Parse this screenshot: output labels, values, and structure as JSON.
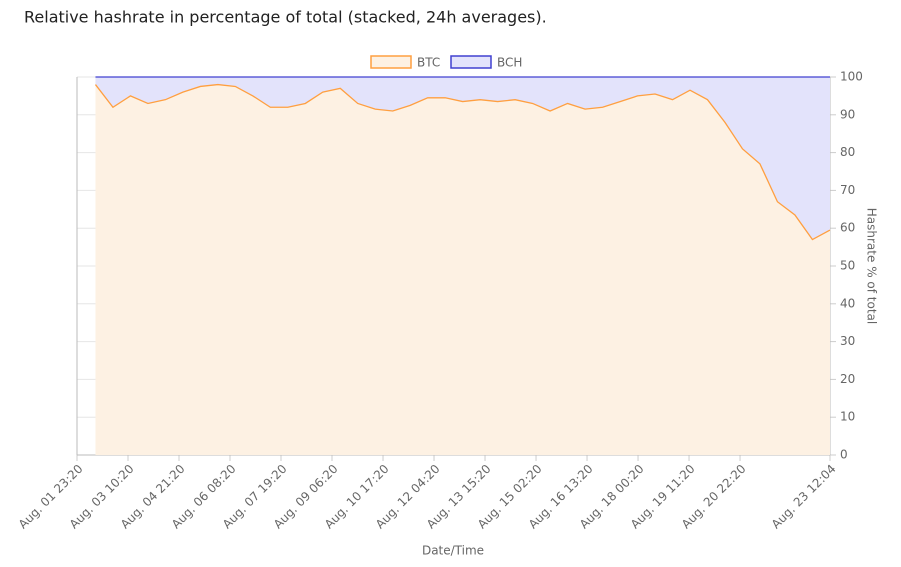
{
  "chart_data": {
    "type": "stacked_area",
    "title": "Relative hashrate in percentage of total (stacked, 24h averages).",
    "x_label": "Date/Time",
    "y_label": "Hashrate % of total",
    "x": [
      "08-02 12:00",
      "08-03 00:00",
      "08-03 12:00",
      "08-04 00:00",
      "08-04 12:00",
      "08-05 00:00",
      "08-05 12:00",
      "08-06 00:00",
      "08-06 12:00",
      "08-07 00:00",
      "08-07 12:00",
      "08-08 00:00",
      "08-08 12:00",
      "08-09 00:00",
      "08-09 12:00",
      "08-10 00:00",
      "08-10 12:00",
      "08-11 00:00",
      "08-11 12:00",
      "08-12 00:00",
      "08-12 12:00",
      "08-13 00:00",
      "08-13 12:00",
      "08-14 00:00",
      "08-14 12:00",
      "08-15 00:00",
      "08-15 12:00",
      "08-16 00:00",
      "08-16 12:00",
      "08-17 00:00",
      "08-17 12:00",
      "08-18 00:00",
      "08-18 12:00",
      "08-19 00:00",
      "08-19 12:00",
      "08-20 00:00",
      "08-20 12:00",
      "08-21 00:00",
      "08-21 12:00",
      "08-22 00:00",
      "08-22 12:00",
      "08-23 00:00",
      "08-23 12:04"
    ],
    "series": [
      {
        "name": "BTC",
        "color": "#ff9f40",
        "fill": "#fdf1e3",
        "values": [
          98,
          92,
          95,
          93,
          94,
          96,
          97.5,
          98,
          97.5,
          95,
          92,
          92,
          93,
          96,
          97,
          93,
          91.5,
          91,
          92.5,
          94.5,
          94.5,
          93.5,
          94,
          93.5,
          94,
          93,
          91,
          93,
          91.5,
          92,
          93.5,
          95,
          95.5,
          94,
          96.5,
          94,
          88,
          81,
          77,
          67,
          63.5,
          57,
          59.5
        ]
      },
      {
        "name": "BCH",
        "color": "#4040d0",
        "fill": "#e3e3fb",
        "values": [
          2,
          8,
          5,
          7,
          6,
          4,
          2.5,
          2,
          2.5,
          5,
          8,
          8,
          7,
          4,
          3,
          7,
          8.5,
          9,
          7.5,
          5.5,
          5.5,
          6.5,
          6,
          6.5,
          6,
          7,
          9,
          7,
          8.5,
          8,
          6.5,
          5,
          4.5,
          6,
          3.5,
          6,
          12,
          19,
          23,
          33,
          36.5,
          43,
          40.5
        ]
      }
    ],
    "xlim": [
      "08-01 23:20",
      "08-23 12:04"
    ],
    "xticks": [
      {
        "value": "08-01 23:20",
        "label": "Aug. 01 23:20"
      },
      {
        "value": "08-03 10:20",
        "label": "Aug. 03 10:20"
      },
      {
        "value": "08-04 21:20",
        "label": "Aug. 04 21:20"
      },
      {
        "value": "08-06 08:20",
        "label": "Aug. 06 08:20"
      },
      {
        "value": "08-07 19:20",
        "label": "Aug. 07 19:20"
      },
      {
        "value": "08-09 06:20",
        "label": "Aug. 09 06:20"
      },
      {
        "value": "08-10 17:20",
        "label": "Aug. 10 17:20"
      },
      {
        "value": "08-12 04:20",
        "label": "Aug. 12 04:20"
      },
      {
        "value": "08-13 15:20",
        "label": "Aug. 13 15:20"
      },
      {
        "value": "08-15 02:20",
        "label": "Aug. 15 02:20"
      },
      {
        "value": "08-16 13:20",
        "label": "Aug. 16 13:20"
      },
      {
        "value": "08-18 00:20",
        "label": "Aug. 18 00:20"
      },
      {
        "value": "08-19 11:20",
        "label": "Aug. 19 11:20"
      },
      {
        "value": "08-20 22:20",
        "label": "Aug. 20 22:20"
      },
      {
        "value": "08-23 12:04",
        "label": "Aug. 23 12:04"
      }
    ],
    "ylim": [
      0,
      100
    ],
    "yticks": [
      0,
      10,
      20,
      30,
      40,
      50,
      60,
      70,
      80,
      90,
      100
    ],
    "grid": true,
    "legend": "top"
  }
}
